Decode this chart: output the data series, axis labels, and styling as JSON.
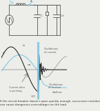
{
  "bg_color": "#ededea",
  "labels": {
    "e_label": "E",
    "ua_label": "ua",
    "ia_label": "ia",
    "current_zero": "Current after\nre-priming",
    "osc_current": "Oscillations\nof current",
    "osc_tension": "Oscillations\nof tension",
    "dialleur": "dialleur",
    "minus_U0": "-U0"
  },
  "wave_colors": {
    "voltage": "#7ec8e3",
    "current": "#2a2a2a",
    "disconnect_line": "#7ec8e3"
  },
  "caption_text": "If the circuit-breaker doesn't open quickly enough, successive restrikes\ncan cause dangerous overvoltages on the load.",
  "caption_fontsize": 3.0,
  "gray": "#555555",
  "blue": "#7ec8e3"
}
